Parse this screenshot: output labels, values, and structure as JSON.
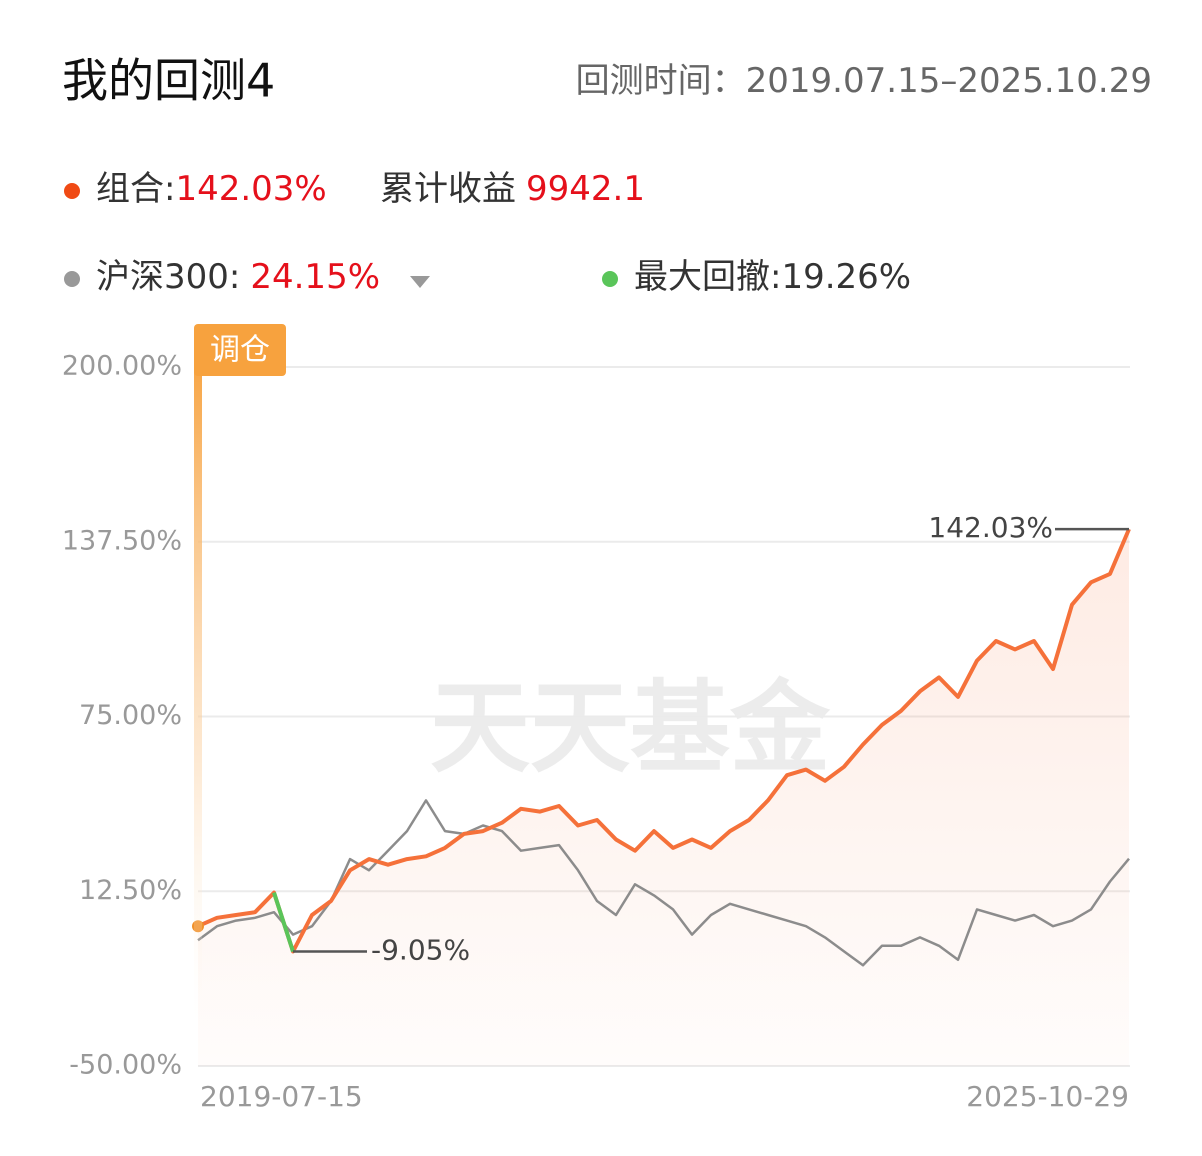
{
  "header": {
    "title": "我的回测4",
    "period_label": "回测时间：",
    "period": "2019.07.15–2025.10.29"
  },
  "chart_data": {
    "type": "line",
    "categories": [
      "2019-07-15",
      null,
      null,
      null,
      null,
      null,
      null,
      null,
      null,
      null,
      null,
      null,
      null,
      null,
      null,
      null,
      null,
      null,
      null,
      null,
      null,
      null,
      null,
      null,
      null,
      null,
      null,
      null,
      null,
      null,
      null,
      null,
      null,
      null,
      null,
      null,
      null,
      null,
      null,
      null,
      null,
      null,
      null,
      null,
      null,
      null,
      null,
      null,
      null,
      "2025-10-29"
    ],
    "series": [
      {
        "name": "组合:",
        "color": "#f5713a",
        "return": {
          "value": 142.03,
          "label": "142.03%"
        },
        "values": [
          0,
          3,
          4,
          5,
          12,
          -9.05,
          4,
          9,
          20,
          24,
          22,
          24,
          25,
          28,
          33,
          34,
          37,
          42,
          41,
          43,
          36,
          38,
          31,
          27,
          34,
          28,
          31,
          28,
          34,
          38,
          45,
          54,
          56,
          52,
          57,
          65,
          72,
          77,
          84,
          89,
          82,
          95,
          102,
          99,
          102,
          92,
          115,
          123,
          126,
          142.03
        ],
        "value_labels": [
          null,
          null,
          null,
          null,
          null,
          "-9.05%",
          null,
          null,
          null,
          null,
          null,
          null,
          null,
          null,
          null,
          null,
          null,
          null,
          null,
          null,
          null,
          null,
          null,
          null,
          null,
          null,
          null,
          null,
          null,
          null,
          null,
          null,
          null,
          null,
          null,
          null,
          null,
          null,
          null,
          null,
          null,
          null,
          null,
          null,
          null,
          null,
          null,
          null,
          null,
          "142.03%"
        ]
      },
      {
        "name": "沪深300:",
        "color": "#8c8c8c",
        "return": {
          "value": 24.15,
          "label": "24.15%"
        },
        "values": [
          -5,
          0,
          2,
          3,
          5,
          -3,
          0,
          9,
          24,
          20,
          27,
          34,
          45,
          34,
          33,
          36,
          34,
          27,
          28,
          29,
          20,
          9,
          4,
          15,
          11,
          6,
          -3,
          4,
          8,
          6,
          4,
          2,
          0,
          -4,
          -9,
          -14,
          -7,
          -7,
          -4,
          -7,
          -12,
          6,
          4,
          2,
          4,
          0,
          2,
          6,
          16,
          24.15
        ]
      }
    ],
    "total_return_label": "累计收益",
    "total_return": 9942.1,
    "max_drawdown_label": "最大回撤:",
    "max_drawdown": {
      "value": 19.26,
      "label": "19.26%"
    },
    "drawdown_color": "#5ac55a",
    "rebalance_label": "调仓",
    "watermark": "天天基金",
    "ylim": [
      -50,
      200
    ],
    "yticks": [
      {
        "value": -50,
        "label": "-50.00%"
      },
      {
        "value": 12.5,
        "label": "12.50%"
      },
      {
        "value": 75,
        "label": "75.00%"
      },
      {
        "value": 137.5,
        "label": "137.50%"
      },
      {
        "value": 200,
        "label": "200.00%"
      }
    ],
    "grid": true
  }
}
